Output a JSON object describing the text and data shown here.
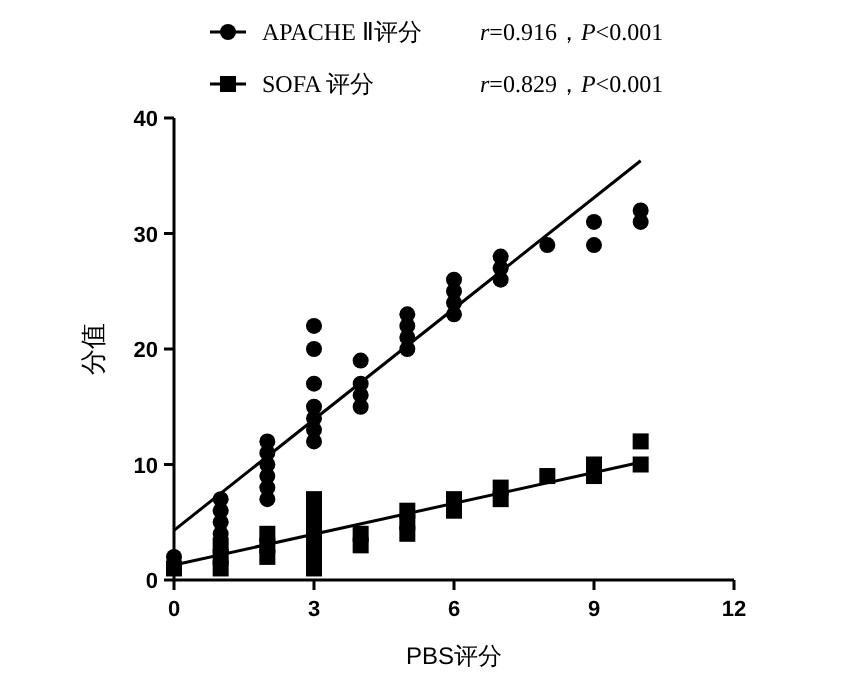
{
  "chart_data": {
    "type": "scatter",
    "xlabel": "PBS评分",
    "ylabel": "分值",
    "xlim": [
      0,
      12
    ],
    "xticks": [
      0,
      3,
      6,
      9,
      12
    ],
    "ylim": [
      0,
      40
    ],
    "yticks": [
      0,
      10,
      20,
      30,
      40
    ],
    "grid": false,
    "legend": "top",
    "series": [
      {
        "name": "APACHE Ⅱ评分",
        "color": "#000000",
        "marker": "circle",
        "x": [
          0,
          1,
          1,
          1,
          1,
          2,
          2,
          2,
          2,
          2,
          2,
          3,
          3,
          3,
          3,
          3,
          3,
          3,
          4,
          4,
          4,
          4,
          5,
          5,
          5,
          5,
          6,
          6,
          6,
          6,
          7,
          7,
          7,
          8,
          9,
          9,
          10,
          10
        ],
        "values": [
          2,
          4,
          5,
          6,
          7,
          7,
          8,
          9,
          10,
          11,
          12,
          12,
          13,
          14,
          15,
          17,
          20,
          22,
          15,
          16,
          17,
          19,
          20,
          21,
          22,
          23,
          23,
          24,
          25,
          26,
          26,
          27,
          28,
          29,
          29,
          31,
          31,
          32
        ]
      },
      {
        "name": "SOFA 评分",
        "color": "#000000",
        "marker": "square",
        "x": [
          0,
          1,
          1,
          1,
          2,
          2,
          2,
          3,
          3,
          3,
          3,
          3,
          3,
          3,
          4,
          4,
          5,
          5,
          5,
          6,
          6,
          7,
          7,
          8,
          9,
          9,
          10,
          10
        ],
        "values": [
          1,
          1,
          2,
          3,
          2,
          3,
          4,
          1,
          2,
          3,
          4,
          5,
          6,
          7,
          3,
          4,
          4,
          5,
          6,
          6,
          7,
          7,
          8,
          9,
          9,
          10,
          10,
          12
        ]
      },
      {
        "type": "line",
        "color": "#000000",
        "x": [
          0,
          10
        ],
        "values": [
          4.3,
          36.3
        ]
      },
      {
        "type": "line",
        "color": "#000000",
        "x": [
          0,
          10
        ],
        "values": [
          1.3,
          10.2
        ]
      }
    ],
    "annotations": [
      "r=0.916，P<0.001",
      "r=0.829，P<0.001"
    ]
  }
}
